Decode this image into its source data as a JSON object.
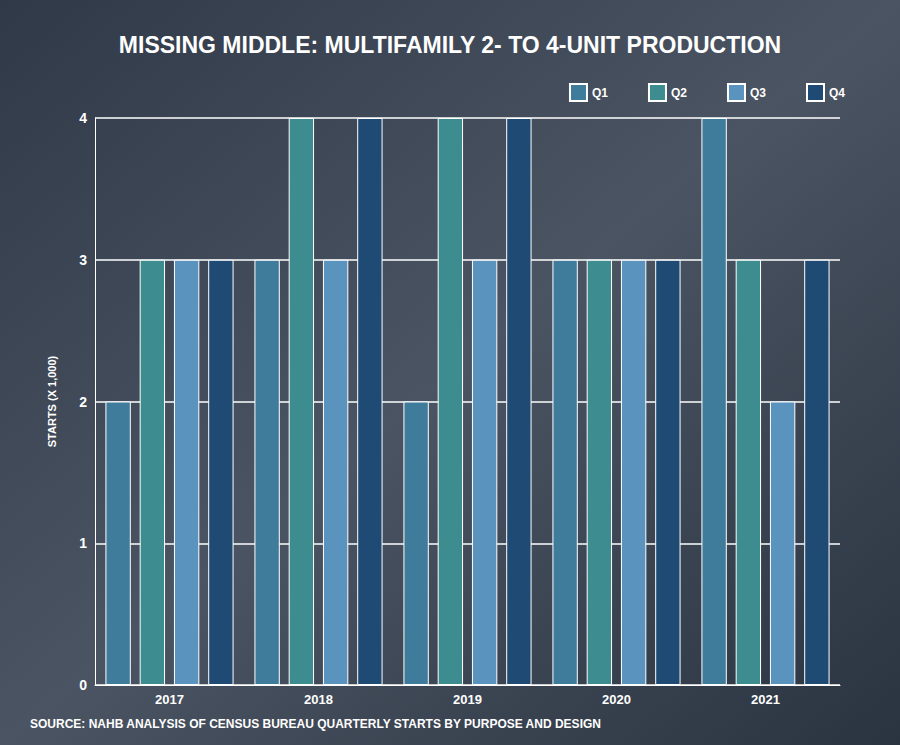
{
  "chart_data": {
    "type": "bar",
    "title": "MISSING MIDDLE: MULTIFAMILY 2- TO 4-UNIT PRODUCTION",
    "y_label": "STARTS (X 1,000)",
    "source": "SOURCE: NAHB ANALYSIS OF CENSUS BUREAU QUARTERLY STARTS BY PURPOSE AND DESIGN",
    "categories": [
      "2017",
      "2018",
      "2019",
      "2020",
      "2021"
    ],
    "series": [
      {
        "name": "Q1",
        "color": "#3f7b9b",
        "values": [
          2,
          3,
          2,
          3,
          4
        ]
      },
      {
        "name": "Q2",
        "color": "#3d8c8f",
        "values": [
          3,
          4,
          4,
          3,
          3
        ]
      },
      {
        "name": "Q3",
        "color": "#5b93bf",
        "values": [
          3,
          3,
          3,
          3,
          2
        ]
      },
      {
        "name": "Q4",
        "color": "#1f4a74",
        "values": [
          3,
          4,
          4,
          3,
          3
        ]
      }
    ],
    "ylim": [
      0,
      4
    ],
    "yticks": [
      0,
      1,
      2,
      3,
      4
    ],
    "grid": true,
    "legend": "top-right"
  }
}
